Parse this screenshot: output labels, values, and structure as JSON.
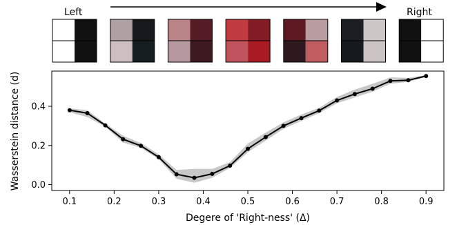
{
  "header": {
    "left_label": "Left",
    "right_label": "Right"
  },
  "swatches": [
    {
      "cells": [
        "#ffffff",
        "#111111",
        "#ffffff",
        "#111111"
      ]
    },
    {
      "cells": [
        "#b0a0a3",
        "#151718",
        "#cdbfbf",
        "#151d20"
      ]
    },
    {
      "cells": [
        "#b88488",
        "#541c25",
        "#b49aa0",
        "#3d1a20"
      ]
    },
    {
      "cells": [
        "#bf3b40",
        "#821b24",
        "#c0545c",
        "#a81b22"
      ]
    },
    {
      "cells": [
        "#5e1a22",
        "#b89ca0",
        "#2e1a1e",
        "#bf5c60"
      ]
    },
    {
      "cells": [
        "#1c1f22",
        "#cdc6c6",
        "#151a1d",
        "#ccc4c4"
      ]
    },
    {
      "cells": [
        "#111111",
        "#ffffff",
        "#111111",
        "#ffffff"
      ]
    }
  ],
  "colors": {
    "line": "#000000",
    "band": "#c8c8c8"
  },
  "chart_data": {
    "type": "line",
    "xlabel": "Degere of 'Right-ness' (Δ)",
    "ylabel": "Wasserstein distance (d)",
    "xlim": [
      0.06,
      0.94
    ],
    "ylim": [
      -0.03,
      0.58
    ],
    "xticks": [
      "0.1",
      "0.2",
      "0.3",
      "0.4",
      "0.5",
      "0.6",
      "0.7",
      "0.8",
      "0.9"
    ],
    "yticks": [
      "0.0",
      "0.2",
      "0.4"
    ],
    "grid": false,
    "series": [
      {
        "x": [
          0.1,
          0.14,
          0.18,
          0.22,
          0.26,
          0.3,
          0.34,
          0.38,
          0.42,
          0.46,
          0.5,
          0.54,
          0.58,
          0.62,
          0.66,
          0.7,
          0.74,
          0.78,
          0.82,
          0.86,
          0.9
        ],
        "y": [
          0.38,
          0.365,
          0.303,
          0.232,
          0.198,
          0.14,
          0.053,
          0.035,
          0.055,
          0.097,
          0.183,
          0.243,
          0.3,
          0.34,
          0.378,
          0.43,
          0.463,
          0.49,
          0.53,
          0.533,
          0.555
        ],
        "lower": [
          0.37,
          0.345,
          0.295,
          0.215,
          0.188,
          0.13,
          0.03,
          0.01,
          0.035,
          0.085,
          0.165,
          0.225,
          0.285,
          0.325,
          0.365,
          0.415,
          0.445,
          0.475,
          0.515,
          0.525,
          0.55
        ],
        "upper": [
          0.39,
          0.38,
          0.312,
          0.25,
          0.212,
          0.155,
          0.075,
          0.08,
          0.08,
          0.115,
          0.21,
          0.265,
          0.318,
          0.358,
          0.392,
          0.448,
          0.485,
          0.515,
          0.548,
          0.545,
          0.56
        ]
      }
    ]
  }
}
